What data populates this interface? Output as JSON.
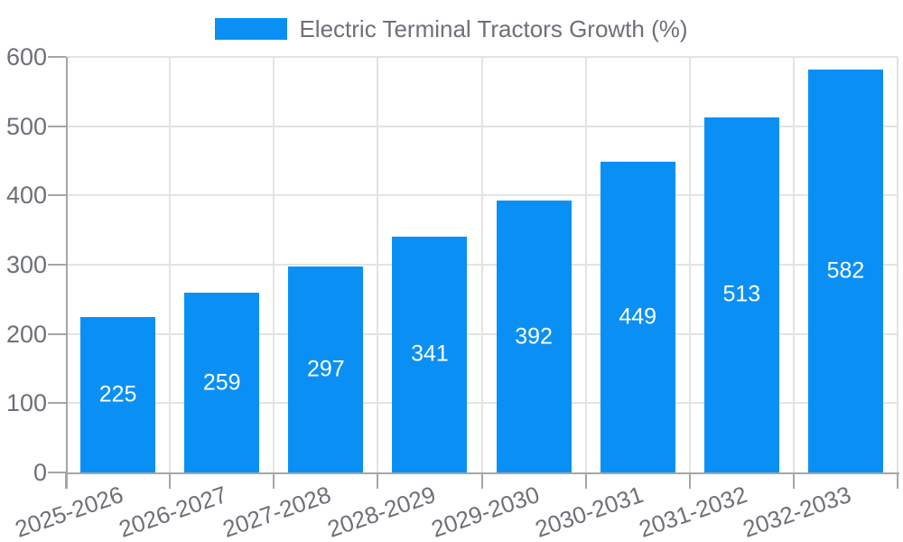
{
  "chart_data": {
    "type": "bar",
    "title": "",
    "legend_label": "Electric Terminal Tractors Growth (%)",
    "legend_position": "top-center",
    "categories": [
      "2025-2026",
      "2026-2027",
      "2027-2028",
      "2028-2029",
      "2029-2030",
      "2030-2031",
      "2031-2032",
      "2032-2033"
    ],
    "values": [
      225,
      259,
      297,
      341,
      392,
      449,
      513,
      582
    ],
    "xlabel": "",
    "ylabel": "",
    "ylim": [
      0,
      600
    ],
    "yticks": [
      0,
      100,
      200,
      300,
      400,
      500,
      600
    ],
    "grid": true,
    "x_label_rotation_deg": -19,
    "colors": {
      "bar": "#0a90f5",
      "value_label": "#ffffff",
      "axis_text": "#6e7079",
      "axis_line": "#a6a6a6",
      "gridline": "#e3e3e3",
      "legend_text": "#6e7079"
    }
  }
}
